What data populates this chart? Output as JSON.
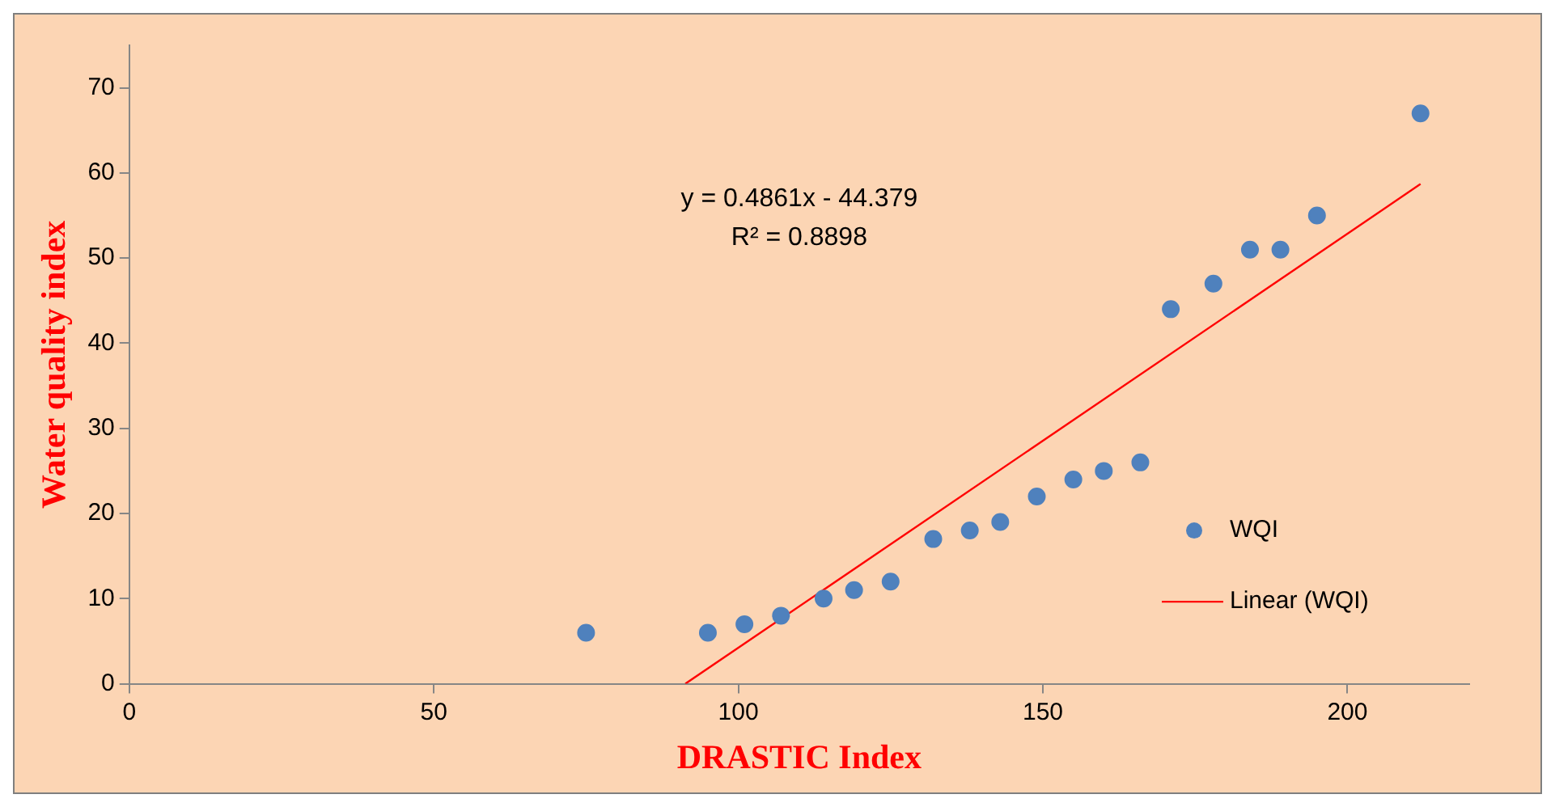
{
  "chart_data": {
    "type": "scatter",
    "xlabel": "DRASTIC Index",
    "ylabel": "Water quality index",
    "xlim": [
      0,
      220
    ],
    "xticks": [
      0,
      50,
      100,
      150,
      200
    ],
    "ylim": [
      0,
      75
    ],
    "yticks": [
      0,
      10,
      20,
      30,
      40,
      50,
      60,
      70
    ],
    "grid": false,
    "legend": "right",
    "annotations": [
      "y = 0.4861x - 44.379",
      "R² = 0.8898"
    ],
    "series": [
      {
        "name": "WQI",
        "type": "scatter",
        "marker": "circle",
        "color": "#4f81bd",
        "x": [
          75,
          95,
          101,
          107,
          114,
          119,
          125,
          132,
          138,
          143,
          149,
          155,
          160,
          166,
          171,
          178,
          184,
          189,
          195,
          212
        ],
        "values": [
          6,
          6,
          7,
          8,
          10,
          11,
          12,
          17,
          18,
          19,
          22,
          24,
          25,
          26,
          44,
          47,
          51,
          51,
          55,
          67
        ]
      },
      {
        "name": "Linear (WQI)",
        "type": "line",
        "marker": "none",
        "color": "#ff0000",
        "x": [
          91.3,
          212
        ],
        "values": [
          0,
          58.7
        ]
      }
    ]
  }
}
